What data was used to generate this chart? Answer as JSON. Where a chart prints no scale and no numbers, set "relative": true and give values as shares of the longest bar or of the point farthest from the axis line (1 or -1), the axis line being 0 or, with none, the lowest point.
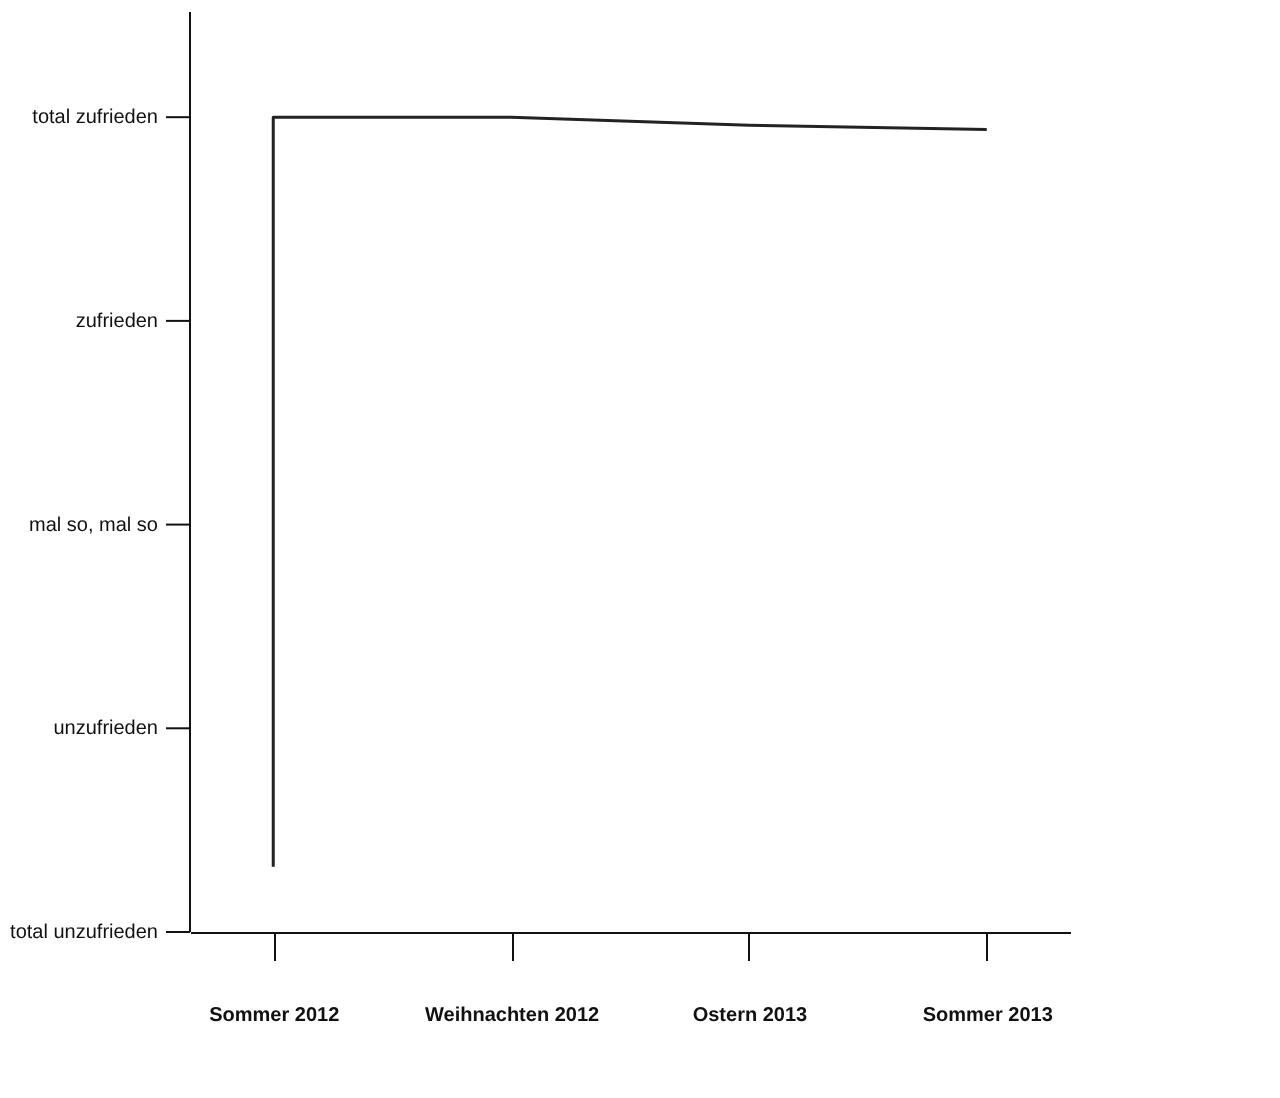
{
  "chart_data": {
    "type": "line",
    "relative": true,
    "categories": [
      "Sommer 2012",
      "Weihnachten 2012",
      "Ostern 2013",
      "Sommer 2013"
    ],
    "series": [
      {
        "color": "#222222",
        "x": [
          "Sommer 2012",
          "Sommer 2012",
          "Weihnachten 2012",
          "Ostern 2013",
          "Sommer 2013"
        ],
        "values": [
          0.08,
          1,
          1,
          0.99,
          0.985
        ]
      }
    ],
    "annotations": [
      "total unzufrieden",
      "unzufrieden",
      "mal so, mal so",
      "zufrieden",
      "total zufrieden"
    ],
    "line_style": "solid"
  }
}
